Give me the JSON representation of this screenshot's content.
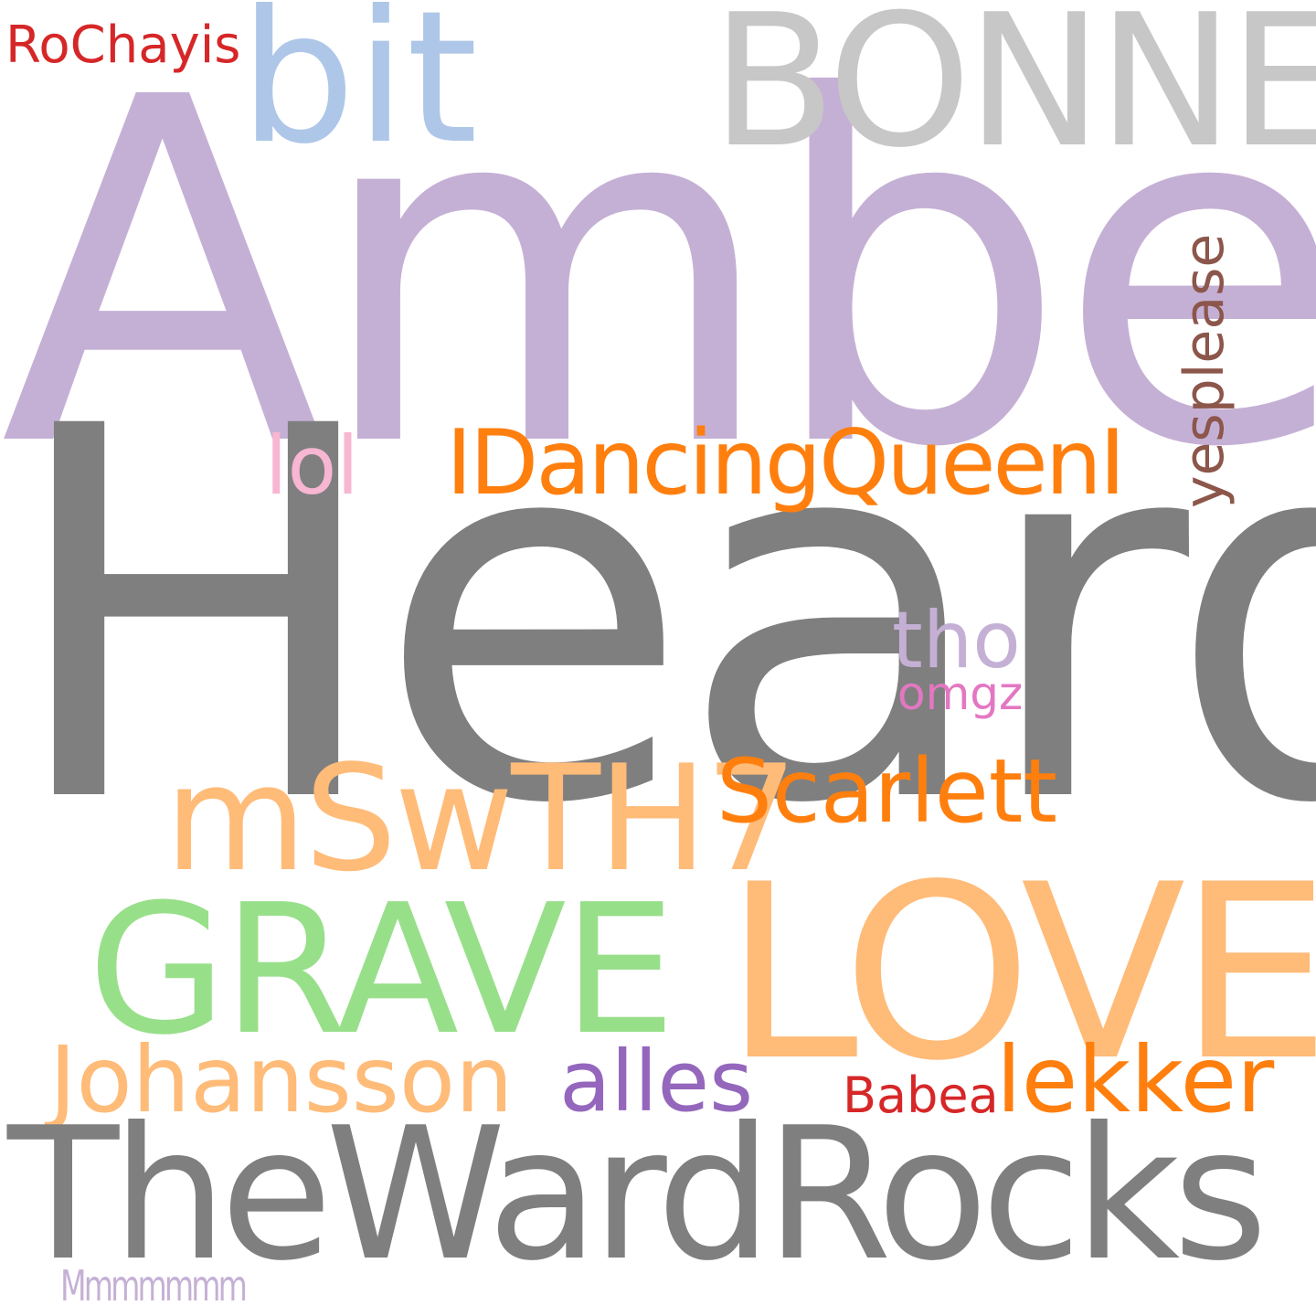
{
  "words": [
    {
      "key": "w_amber",
      "text": "Amber",
      "color": "#c5b0d5"
    },
    {
      "key": "w_heard",
      "text": "Heard",
      "color": "#7f7f7f"
    },
    {
      "key": "w_bit",
      "text": "bit",
      "color": "#aec7e8"
    },
    {
      "key": "w_bonne",
      "text": "BONNE",
      "color": "#c7c7c7"
    },
    {
      "key": "w_rochayis",
      "text": "RoChayis",
      "color": "#d62728"
    },
    {
      "key": "w_lol",
      "text": "lol",
      "color": "#f7b6d2"
    },
    {
      "key": "w_idancing",
      "text": "IDancingQueenI",
      "color": "#ff7f0e"
    },
    {
      "key": "w_yesplease",
      "text": "yesplease",
      "color": "#8c564b"
    },
    {
      "key": "w_tho",
      "text": "tho",
      "color": "#c5b0d5"
    },
    {
      "key": "w_omgz",
      "text": "omgz",
      "color": "#e377c2"
    },
    {
      "key": "w_msw",
      "text": "mSwTH7",
      "color": "#ffbb78"
    },
    {
      "key": "w_scarlett",
      "text": "Scarlett",
      "color": "#ff7f0e"
    },
    {
      "key": "w_grave",
      "text": "GRAVE",
      "color": "#98df8a"
    },
    {
      "key": "w_love",
      "text": "LOVE",
      "color": "#ffbb78"
    },
    {
      "key": "w_johansson",
      "text": "Johansson",
      "color": "#ffbb78"
    },
    {
      "key": "w_alles",
      "text": "alles",
      "color": "#9467bd"
    },
    {
      "key": "w_babea",
      "text": "Babea",
      "color": "#d62728"
    },
    {
      "key": "w_lekker",
      "text": "lekker",
      "color": "#ff7f0e"
    },
    {
      "key": "w_theward",
      "text": "TheWardRocks",
      "color": "#7f7f7f"
    },
    {
      "key": "w_mmm",
      "text": "Mmmmmmm",
      "color": "#c5b0d5"
    }
  ]
}
